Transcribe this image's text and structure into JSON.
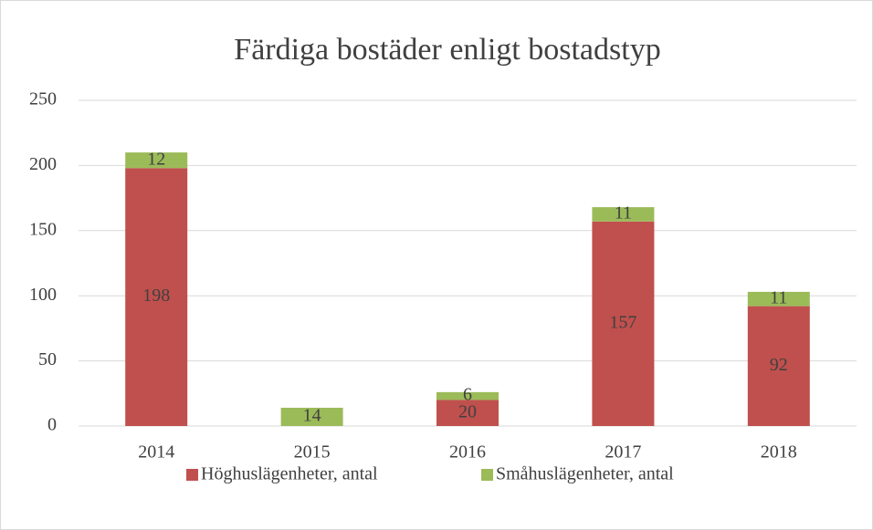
{
  "chart_data": {
    "type": "stacked_bar",
    "title": "Färdiga bostäder enligt bostadstyp",
    "categories": [
      "2014",
      "2015",
      "2016",
      "2017",
      "2018"
    ],
    "series": [
      {
        "name": "Höghuslägenheter, antal",
        "color": "#c0504d",
        "values": [
          198,
          null,
          20,
          157,
          92
        ]
      },
      {
        "name": "Småhuslägenheter, antal",
        "color": "#9bbb59",
        "values": [
          12,
          14,
          6,
          11,
          11
        ]
      }
    ],
    "ylim": [
      0,
      250
    ],
    "yticks": [
      0,
      50,
      100,
      150,
      200,
      250
    ],
    "grid": true,
    "legend": "bottom"
  }
}
